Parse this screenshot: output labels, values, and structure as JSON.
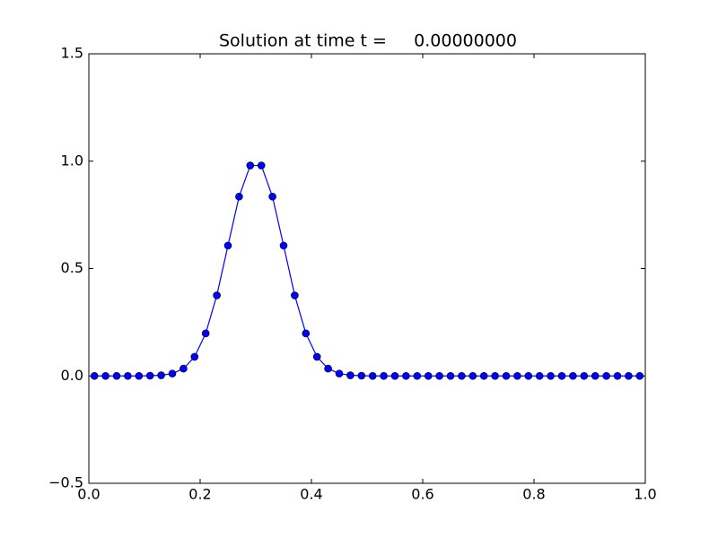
{
  "chart_data": {
    "type": "line",
    "title": "Solution at time t =     0.00000000",
    "x": [
      0.01,
      0.03,
      0.05,
      0.07,
      0.09,
      0.11,
      0.13,
      0.15,
      0.17,
      0.19,
      0.21,
      0.23,
      0.25,
      0.27,
      0.29,
      0.31,
      0.33,
      0.35,
      0.37,
      0.39,
      0.41,
      0.43,
      0.45,
      0.47,
      0.49,
      0.51,
      0.53,
      0.55,
      0.57,
      0.59,
      0.61,
      0.63,
      0.65,
      0.67,
      0.69,
      0.71,
      0.73,
      0.75,
      0.77,
      0.79,
      0.81,
      0.83,
      0.85,
      0.87,
      0.89,
      0.91,
      0.93,
      0.95,
      0.97,
      0.99
    ],
    "series": [
      {
        "color": "#0000ff",
        "marker": "o",
        "values": [
          0,
          0,
          0,
          0,
          0,
          0.001,
          0.003,
          0.011,
          0.034,
          0.089,
          0.198,
          0.375,
          0.607,
          0.835,
          0.98,
          0.98,
          0.835,
          0.607,
          0.375,
          0.198,
          0.089,
          0.034,
          0.011,
          0.003,
          0.001,
          0,
          0,
          0,
          0,
          0,
          0,
          0,
          0,
          0,
          0,
          0,
          0,
          0,
          0,
          0,
          0,
          0,
          0,
          0,
          0,
          0,
          0,
          0,
          0,
          0
        ]
      }
    ],
    "xlim": [
      0,
      1
    ],
    "ylim": [
      -0.5,
      1.5
    ],
    "xticks": [
      {
        "value": 0,
        "label": "0.0"
      },
      0.2,
      0.4,
      0.6,
      0.8,
      {
        "value": 1,
        "label": "1.0"
      }
    ],
    "yticks": [
      {
        "value": -0.5,
        "label": "−0.5"
      },
      {
        "value": 0,
        "label": "0.0"
      },
      0.5,
      {
        "value": 1,
        "label": "1.0"
      },
      1.5
    ],
    "grid": false
  }
}
